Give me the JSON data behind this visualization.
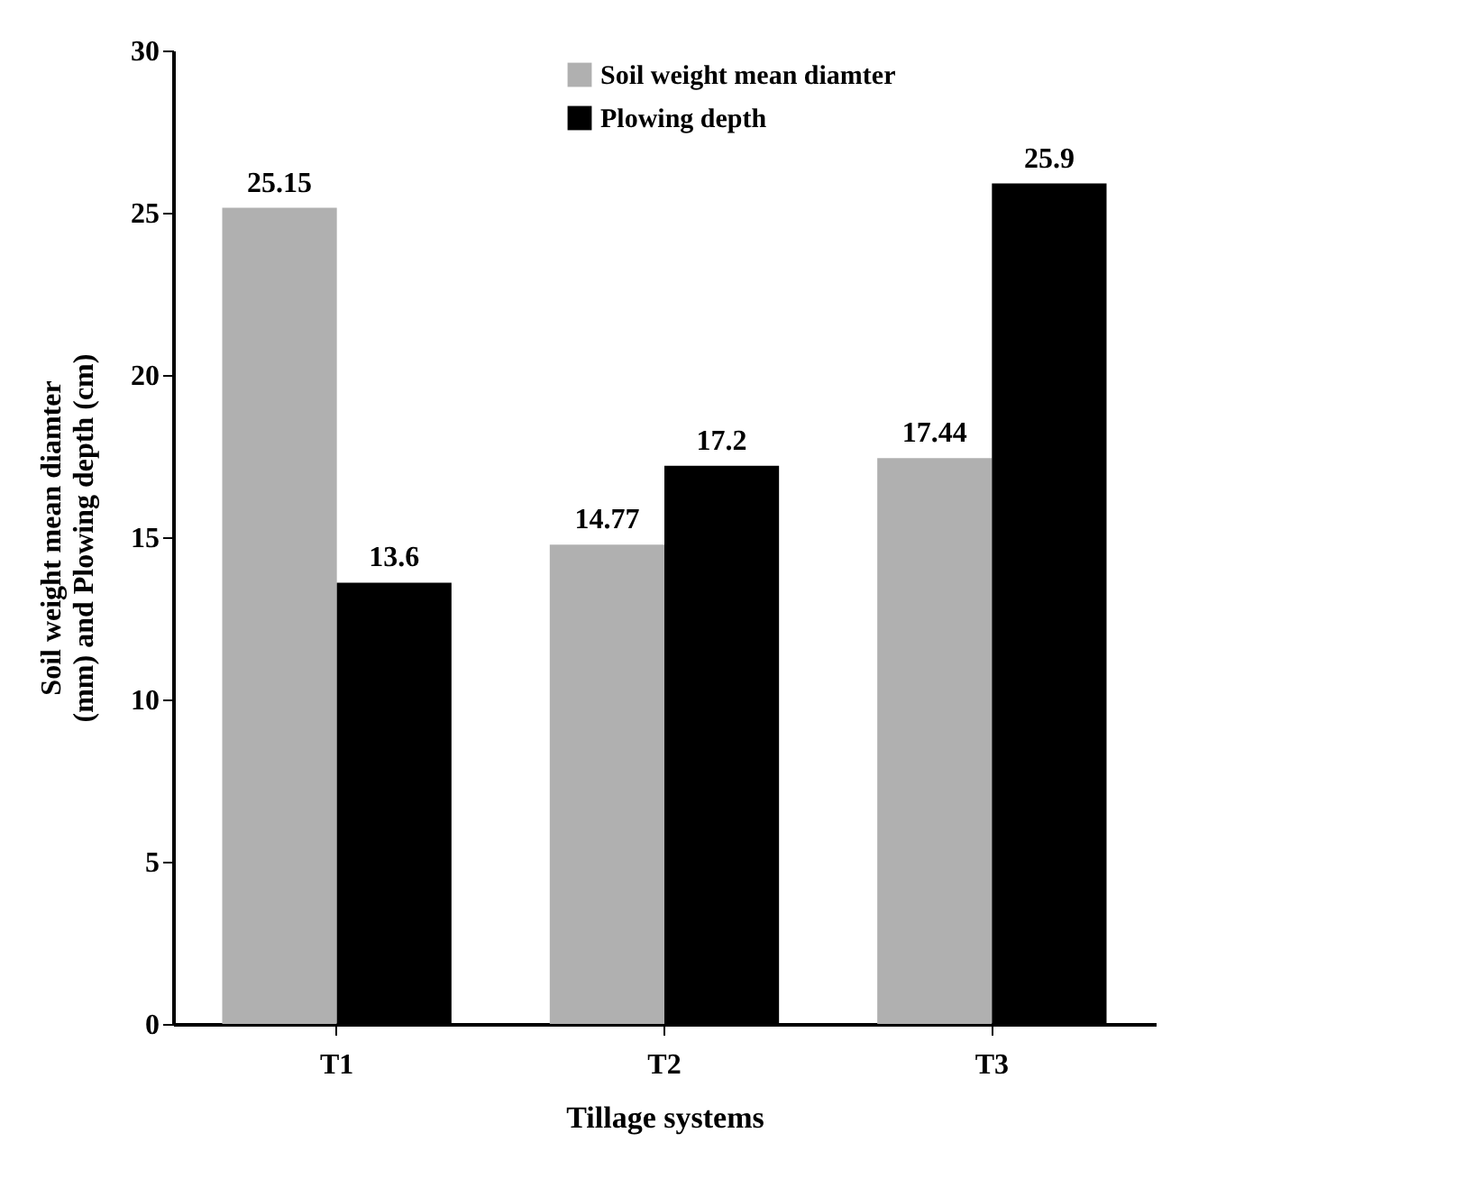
{
  "chart_data": {
    "type": "bar",
    "xlabel": "Tillage systems",
    "ylabel": "Soil weight mean diamter (mm) and Plowing depth (cm)",
    "categories": [
      "T1",
      "T2",
      "T3"
    ],
    "series": [
      {
        "name": "Soil weight mean diamter",
        "color": "#b0b0b0",
        "values": [
          25.15,
          14.77,
          17.44
        ]
      },
      {
        "name": "Plowing depth",
        "color": "#000000",
        "values": [
          13.6,
          17.2,
          25.9
        ]
      }
    ],
    "ylim": [
      0,
      30
    ],
    "yticks": [
      0,
      5,
      10,
      15,
      20,
      25,
      30
    ],
    "data_labels": true,
    "legend": "top",
    "grid": false
  }
}
